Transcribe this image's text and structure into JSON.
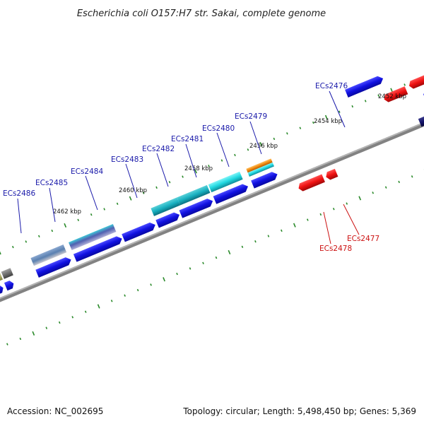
{
  "title": "Escherichia coli O157:H7 str. Sakai, complete genome",
  "footer": {
    "accession": "Accession: NC_002695",
    "stats": "Topology: circular; Length: 5,498,450 bp; Genes: 5,369"
  },
  "ticks": [
    {
      "label": "2452 kbp"
    },
    {
      "label": "2454 kbp"
    },
    {
      "label": "2456 kbp"
    },
    {
      "label": "2458 kbp"
    },
    {
      "label": "2460 kbp"
    },
    {
      "label": "2462 kbp"
    }
  ],
  "genes_forward": [
    {
      "name": "ECs2476"
    },
    {
      "name": "ECs2479"
    },
    {
      "name": "ECs2480"
    },
    {
      "name": "ECs2481"
    },
    {
      "name": "ECs2482"
    },
    {
      "name": "ECs2483"
    },
    {
      "name": "ECs2484"
    },
    {
      "name": "ECs2485"
    },
    {
      "name": "ECs2486"
    }
  ],
  "genes_reverse": [
    {
      "name": "ECs2477"
    },
    {
      "name": "ECs2478"
    }
  ],
  "colors": {
    "forward_gene": "#1010e0",
    "reverse_gene": "#ee1111",
    "backbone": "#808080",
    "tick": "#2a8a2a",
    "cyan_feature": "#20d8e0",
    "orange_feature": "#f08a10"
  }
}
